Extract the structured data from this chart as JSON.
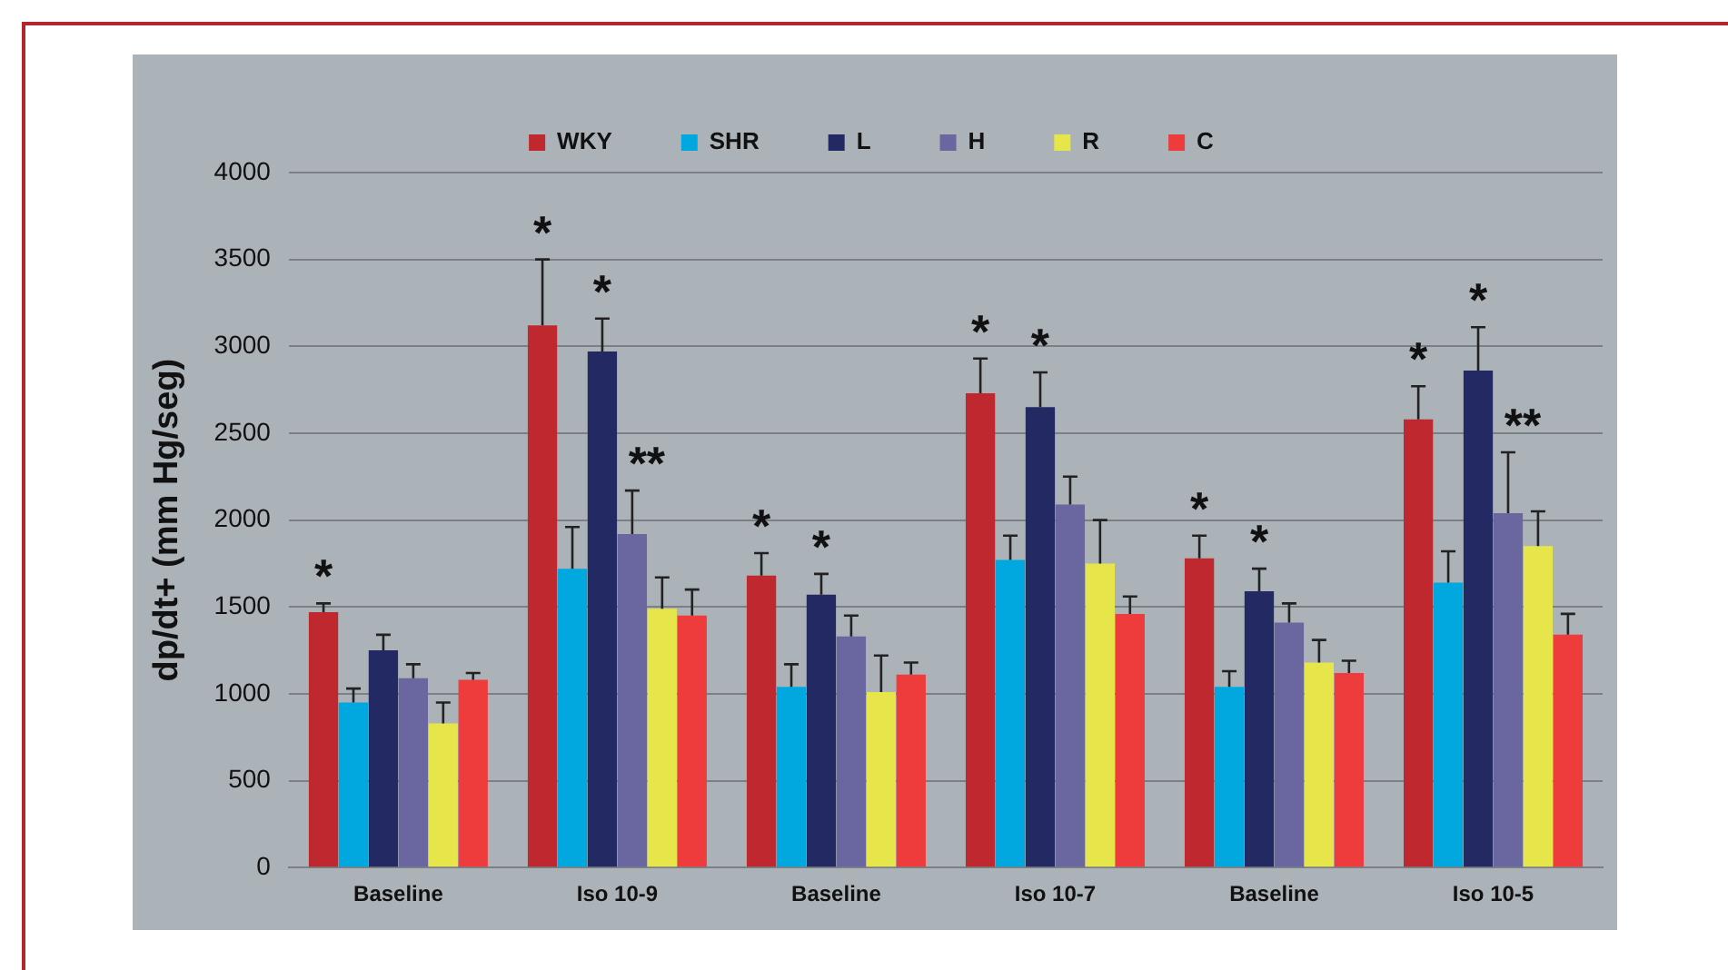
{
  "chart_data": {
    "type": "bar",
    "ylabel": "dp/dt+ (mm Hg/seg)",
    "categories": [
      "Baseline",
      "Iso 10-9",
      "Baseline",
      "Iso 10-7",
      "Baseline",
      "Iso 10-5"
    ],
    "ylim": [
      0,
      4000
    ],
    "yticks": [
      0,
      500,
      1000,
      1500,
      2000,
      2500,
      3000,
      3500,
      4000
    ],
    "grid": "y",
    "legend": "top",
    "series": [
      {
        "name": "WKY",
        "color": "#c0282f",
        "values": [
          1470,
          3120,
          1680,
          2730,
          1780,
          2580
        ],
        "errors": [
          [
            1470,
            1520
          ],
          [
            3120,
            3500
          ],
          [
            1680,
            1810
          ],
          [
            2730,
            2930
          ],
          [
            1780,
            1910
          ],
          [
            2580,
            2770
          ]
        ],
        "value_labels": [
          "*",
          "*",
          "*",
          "*",
          "*",
          "*"
        ]
      },
      {
        "name": "SHR",
        "color": "#00a8e0",
        "values": [
          950,
          1720,
          1040,
          1770,
          1040,
          1640
        ],
        "errors": [
          [
            950,
            1030
          ],
          [
            1720,
            1960
          ],
          [
            1040,
            1170
          ],
          [
            1770,
            1910
          ],
          [
            1040,
            1130
          ],
          [
            1640,
            1820
          ]
        ]
      },
      {
        "name": "L",
        "color": "#232a63",
        "values": [
          1250,
          2970,
          1570,
          2650,
          1590,
          2860
        ],
        "errors": [
          [
            1250,
            1340
          ],
          [
            2970,
            3160
          ],
          [
            1570,
            1690
          ],
          [
            2650,
            2850
          ],
          [
            1590,
            1720
          ],
          [
            2860,
            3110
          ]
        ],
        "value_labels": [
          null,
          "*",
          "*",
          "*",
          "*",
          "*"
        ]
      },
      {
        "name": "H",
        "color": "#6a67a0",
        "values": [
          1090,
          1920,
          1330,
          2090,
          1410,
          2040
        ],
        "errors": [
          [
            1090,
            1170
          ],
          [
            1920,
            2170
          ],
          [
            1330,
            1450
          ],
          [
            2090,
            2250
          ],
          [
            1410,
            1520
          ],
          [
            2040,
            2390
          ]
        ],
        "value_labels": [
          null,
          "**",
          null,
          null,
          null,
          "**"
        ]
      },
      {
        "name": "R",
        "color": "#e6e64a",
        "values": [
          830,
          1490,
          1010,
          1750,
          1180,
          1850
        ],
        "errors": [
          [
            830,
            950
          ],
          [
            1490,
            1670
          ],
          [
            1010,
            1220
          ],
          [
            1750,
            2000
          ],
          [
            1180,
            1310
          ],
          [
            1850,
            2050
          ]
        ]
      },
      {
        "name": "C",
        "color": "#ee3b3b",
        "values": [
          1080,
          1450,
          1110,
          1460,
          1120,
          1340
        ],
        "errors": [
          [
            1080,
            1120
          ],
          [
            1450,
            1600
          ],
          [
            1110,
            1180
          ],
          [
            1460,
            1560
          ],
          [
            1120,
            1190
          ],
          [
            1340,
            1460
          ]
        ]
      }
    ]
  }
}
